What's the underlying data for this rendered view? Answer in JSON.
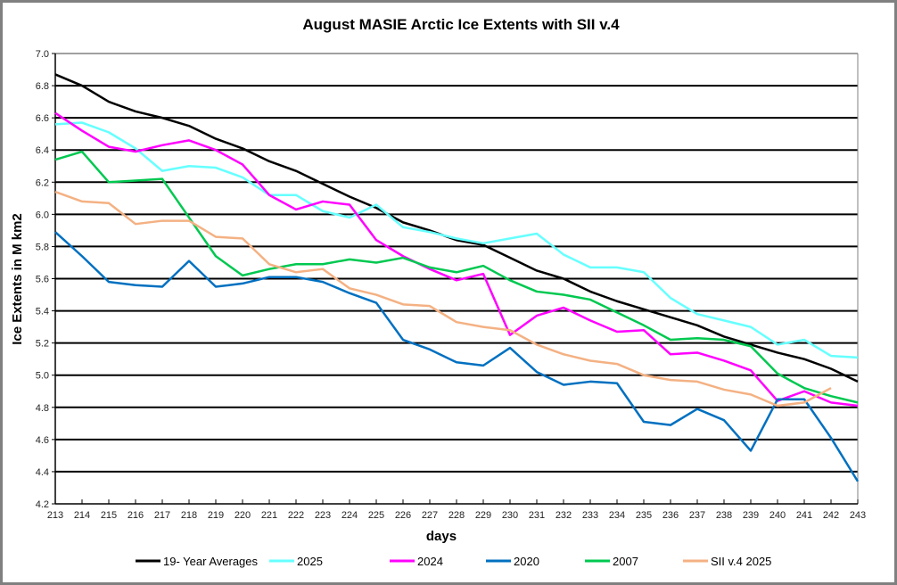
{
  "chart_data": {
    "type": "line",
    "title": "August  MASIE Arctic Ice Extents with SII v.4",
    "xlabel": "days",
    "ylabel": "Ice Extents in M km2",
    "ylim": [
      4.2,
      7.0
    ],
    "yticks": [
      "4.2",
      "4.4",
      "4.6",
      "4.8",
      "5.0",
      "5.2",
      "5.4",
      "5.6",
      "5.8",
      "6.0",
      "6.2",
      "6.4",
      "6.6",
      "6.8",
      "7.0"
    ],
    "x": [
      213,
      214,
      215,
      216,
      217,
      218,
      219,
      220,
      221,
      222,
      223,
      224,
      225,
      226,
      227,
      228,
      229,
      230,
      231,
      232,
      233,
      234,
      235,
      236,
      237,
      238,
      239,
      240,
      241,
      242,
      243
    ],
    "grid": "horizontal",
    "legend_position": "bottom",
    "series": [
      {
        "name": "19- Year Averages",
        "color": "#000000",
        "values": [
          6.87,
          6.8,
          6.7,
          6.64,
          6.6,
          6.55,
          6.47,
          6.41,
          6.33,
          6.27,
          6.19,
          6.11,
          6.04,
          5.95,
          5.9,
          5.84,
          5.81,
          5.73,
          5.65,
          5.6,
          5.52,
          5.46,
          5.41,
          5.36,
          5.31,
          5.24,
          5.19,
          5.14,
          5.1,
          5.04,
          4.96
        ]
      },
      {
        "name": "2025",
        "color": "#66ffff",
        "values": [
          6.56,
          6.57,
          6.51,
          6.41,
          6.27,
          6.3,
          6.29,
          6.23,
          6.12,
          6.12,
          6.02,
          5.98,
          6.06,
          5.92,
          5.89,
          5.85,
          5.82,
          5.85,
          5.88,
          5.75,
          5.67,
          5.67,
          5.64,
          5.48,
          5.38,
          5.34,
          5.3,
          5.19,
          5.22,
          5.12,
          5.11
        ]
      },
      {
        "name": "2024",
        "color": "#ff00ff",
        "values": [
          6.63,
          6.52,
          6.42,
          6.39,
          6.43,
          6.46,
          6.4,
          6.31,
          6.12,
          6.03,
          6.08,
          6.06,
          5.84,
          5.74,
          5.66,
          5.59,
          5.63,
          5.25,
          5.37,
          5.42,
          5.34,
          5.27,
          5.28,
          5.13,
          5.14,
          5.09,
          5.03,
          4.84,
          4.9,
          4.83,
          4.81
        ]
      },
      {
        "name": "2020",
        "color": "#0070c0",
        "values": [
          5.89,
          5.74,
          5.58,
          5.56,
          5.55,
          5.71,
          5.55,
          5.57,
          5.61,
          5.61,
          5.58,
          5.51,
          5.45,
          5.22,
          5.16,
          5.08,
          5.06,
          5.17,
          5.02,
          4.94,
          4.96,
          4.95,
          4.71,
          4.69,
          4.79,
          4.72,
          4.53,
          4.85,
          4.85,
          4.61,
          4.34
        ]
      },
      {
        "name": "2007",
        "color": "#00c850",
        "values": [
          6.34,
          6.39,
          6.2,
          6.21,
          6.22,
          5.98,
          5.74,
          5.62,
          5.66,
          5.69,
          5.69,
          5.72,
          5.7,
          5.73,
          5.67,
          5.64,
          5.68,
          5.59,
          5.52,
          5.5,
          5.47,
          5.39,
          5.31,
          5.22,
          5.23,
          5.22,
          5.18,
          5.01,
          4.92,
          4.87,
          4.83
        ]
      },
      {
        "name": "SII v.4 2025",
        "color": "#f4b183",
        "values": [
          6.14,
          6.08,
          6.07,
          5.94,
          5.96,
          5.96,
          5.86,
          5.85,
          5.69,
          5.64,
          5.66,
          5.54,
          5.5,
          5.44,
          5.43,
          5.33,
          5.3,
          5.28,
          5.19,
          5.13,
          5.09,
          5.07,
          5.0,
          4.97,
          4.96,
          4.91,
          4.88,
          4.81,
          4.83,
          4.92,
          null
        ]
      }
    ]
  }
}
